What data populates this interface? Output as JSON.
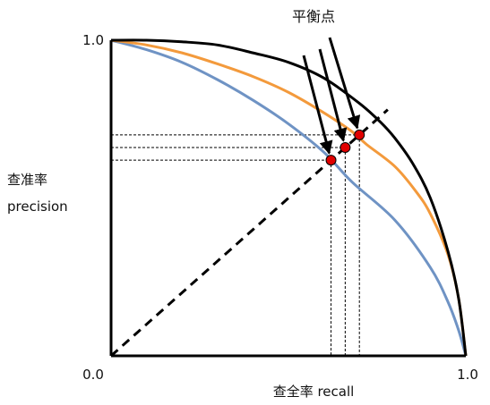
{
  "chart_data": {
    "type": "line",
    "title": "",
    "xlabel": "查全率 recall",
    "ylabel_cn": "查准率",
    "ylabel_en": "precision",
    "xlim": [
      0,
      1
    ],
    "ylim": [
      0,
      1
    ],
    "tick_labels": {
      "origin": "0.0",
      "x_end": "1.0",
      "y_end": "1.0"
    },
    "annotation": "平衡点",
    "grid": false,
    "legend": "none",
    "diagonal": {
      "x": [
        0,
        1
      ],
      "y": [
        0,
        1
      ],
      "style": "dashed"
    },
    "series": [
      {
        "color": "#000000",
        "x": [
          0.0,
          0.1,
          0.2,
          0.3,
          0.4,
          0.5,
          0.6,
          0.7,
          0.76,
          0.8,
          0.85,
          0.9,
          0.95,
          0.98,
          1.0
        ],
        "y": [
          1.0,
          1.0,
          0.995,
          0.985,
          0.96,
          0.93,
          0.88,
          0.8,
          0.74,
          0.69,
          0.61,
          0.5,
          0.33,
          0.18,
          0.0
        ]
      },
      {
        "color": "#f39a3c",
        "x": [
          0.0,
          0.1,
          0.2,
          0.3,
          0.4,
          0.5,
          0.6,
          0.68,
          0.72,
          0.8,
          0.86,
          0.9,
          0.95,
          0.98,
          1.0
        ],
        "y": [
          1.0,
          0.985,
          0.96,
          0.925,
          0.885,
          0.835,
          0.77,
          0.71,
          0.67,
          0.6,
          0.52,
          0.45,
          0.32,
          0.18,
          0.0
        ]
      },
      {
        "color": "#6f93c4",
        "x": [
          0.0,
          0.1,
          0.2,
          0.3,
          0.4,
          0.5,
          0.6,
          0.68,
          0.8,
          0.9,
          0.95,
          0.98,
          1.0
        ],
        "y": [
          1.0,
          0.97,
          0.93,
          0.875,
          0.81,
          0.735,
          0.645,
          0.55,
          0.43,
          0.28,
          0.17,
          0.08,
          0.0
        ]
      }
    ],
    "break_even_points": [
      {
        "x": 0.62,
        "y": 0.62,
        "color": "#e00000"
      },
      {
        "x": 0.66,
        "y": 0.66,
        "color": "#e00000"
      },
      {
        "x": 0.7,
        "y": 0.7,
        "color": "#e00000"
      }
    ]
  }
}
